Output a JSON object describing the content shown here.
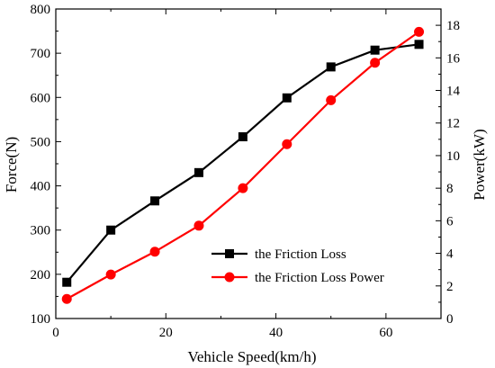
{
  "chart_data": {
    "type": "line",
    "xlabel": "Vehicle Speed(km/h)",
    "ylabel_left": "Force(N)",
    "ylabel_right": "Power(kW)",
    "xlim": [
      0,
      70
    ],
    "ylim_left": [
      100,
      800
    ],
    "ylim_right": [
      0,
      19
    ],
    "x_ticks": [
      "0",
      "20",
      "40",
      "60"
    ],
    "y_left_ticks": [
      "100",
      "200",
      "300",
      "400",
      "500",
      "600",
      "700",
      "800"
    ],
    "y_right_ticks": [
      "0",
      "2",
      "4",
      "6",
      "8",
      "10",
      "12",
      "14",
      "16",
      "18"
    ],
    "grid": false,
    "legend_position": "lower-right",
    "series": [
      {
        "name": "the Friction Loss",
        "axis": "left",
        "color": "#000000",
        "marker": "square",
        "x": [
          2,
          10,
          18,
          26,
          34,
          42,
          50,
          58,
          66
        ],
        "y": [
          182,
          300,
          366,
          430,
          511,
          599,
          669,
          707,
          720
        ]
      },
      {
        "name": "the Friction Loss Power",
        "axis": "right",
        "color": "#ff0000",
        "marker": "circle",
        "x": [
          2,
          10,
          18,
          26,
          34,
          42,
          50,
          58,
          66
        ],
        "y": [
          1.2,
          2.7,
          4.1,
          5.7,
          8.0,
          10.7,
          13.4,
          15.7,
          17.6
        ]
      }
    ]
  }
}
